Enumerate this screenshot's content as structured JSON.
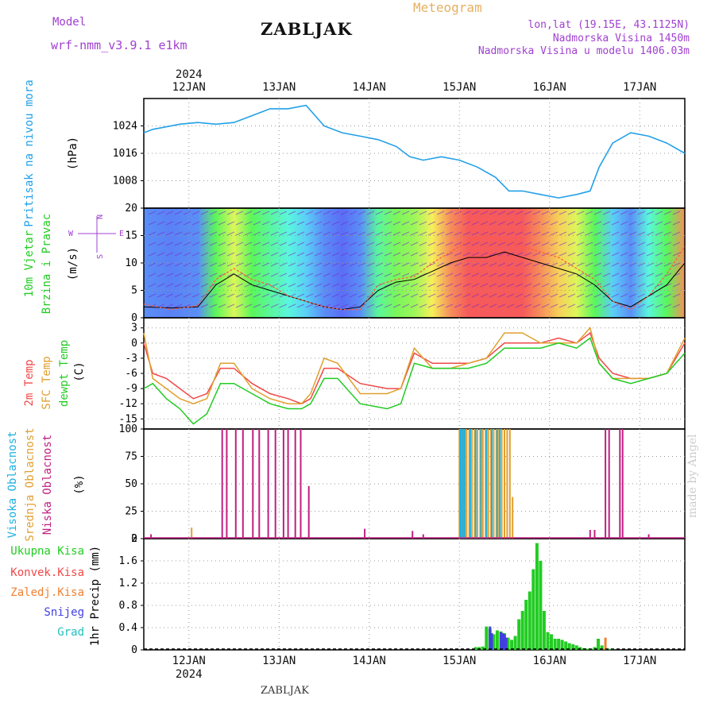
{
  "header": {
    "model_label": "Model",
    "model_name": "wrf-nmm_v3.9.1  e1km",
    "station": "ZABLJAK",
    "meteogram_label": "Meteogram",
    "lonlat": "lon,lat (19.15E, 43.1125N)",
    "elevation": "Nadmorska Visina 1450m",
    "elevation_model": "Nadmorska Visina u modelu 1406.03m"
  },
  "footer": {
    "station": "ZABLJAK",
    "credit": "made by Angel"
  },
  "colors": {
    "pressure": "#22a0e8",
    "temp2m": "#f04848",
    "sfc_temp": "#e0a030",
    "dewpoint": "#22cc22",
    "high_cloud": "#20b0e0",
    "mid_cloud": "#e0a030",
    "low_cloud": "#c02080",
    "total_precip": "#22cc22",
    "convective_precip": "#f04848",
    "freezing_precip": "#f08030",
    "snow": "#4040e0",
    "graupel": "#20c0c0"
  },
  "chart_data": [
    {
      "id": "pressure",
      "type": "line",
      "ylabel": [
        "Pritisak na nivou mora",
        "(hPa)"
      ],
      "yticks": [
        1008,
        1016,
        1024
      ],
      "ylim": [
        1000,
        1032
      ],
      "xlim": [
        11.5,
        17.5
      ],
      "x_top_labels": [
        "12JAN",
        "13JAN",
        "14JAN",
        "15JAN",
        "16JAN",
        "17JAN"
      ],
      "x_top_year": "2024",
      "series": [
        {
          "x": [
            11.5,
            11.6,
            11.7,
            11.9,
            12.1,
            12.3,
            12.5,
            12.7,
            12.9,
            13.1,
            13.3,
            13.5,
            13.7,
            13.9,
            14.1,
            14.3,
            14.45,
            14.6,
            14.8,
            15.0,
            15.2,
            15.4,
            15.55,
            15.7,
            15.9,
            16.1,
            16.3,
            16.45,
            16.55,
            16.7,
            16.9,
            17.1,
            17.3,
            17.5
          ],
          "y": [
            1022,
            1023,
            1023.5,
            1024.5,
            1025,
            1024.5,
            1025,
            1027,
            1029,
            1029,
            1030,
            1024,
            1022,
            1021,
            1020,
            1018,
            1015,
            1014,
            1015,
            1014,
            1012,
            1009,
            1005,
            1005,
            1004,
            1003,
            1004,
            1005,
            1012,
            1019,
            1022,
            1021,
            1019,
            1016
          ]
        }
      ]
    },
    {
      "id": "wind",
      "type": "line",
      "ylabel": [
        "10m Vjetar",
        "Brzina i Pravac",
        "(m/s)"
      ],
      "direction_legend": [
        "N",
        "E",
        "S",
        "W"
      ],
      "yticks": [
        0,
        5,
        10,
        15,
        20
      ],
      "ylim": [
        0,
        20
      ],
      "xlim": [
        11.5,
        17.5
      ],
      "series": [
        {
          "name": "speed",
          "x": [
            11.5,
            11.8,
            12.1,
            12.3,
            12.5,
            12.7,
            12.9,
            13.1,
            13.3,
            13.5,
            13.7,
            13.9,
            14.1,
            14.3,
            14.5,
            14.7,
            14.9,
            15.1,
            15.3,
            15.5,
            15.7,
            15.9,
            16.1,
            16.3,
            16.5,
            16.7,
            16.9,
            17.1,
            17.3,
            17.5
          ],
          "y": [
            2,
            1.8,
            2,
            6,
            8,
            6,
            5,
            4,
            3,
            2,
            1.5,
            2,
            5,
            6.5,
            7,
            8.5,
            10,
            11,
            11,
            12,
            11,
            10,
            9,
            8,
            6,
            3,
            2,
            4,
            6,
            10
          ]
        },
        {
          "name": "gust",
          "x": [
            11.5,
            11.8,
            12.1,
            12.3,
            12.5,
            12.7,
            12.9,
            13.1,
            13.3,
            13.5,
            13.7,
            13.9,
            14.1,
            14.3,
            14.5,
            14.7,
            14.9,
            15.1,
            15.3,
            15.5,
            15.7,
            15.9,
            16.1,
            16.3,
            16.5,
            16.7,
            16.9,
            17.1,
            17.3,
            17.5
          ],
          "y": [
            2.5,
            1.5,
            2.2,
            7,
            9,
            7,
            6,
            4,
            3,
            2,
            1.5,
            1.5,
            6,
            7,
            7.5,
            10,
            12,
            14,
            15,
            14,
            13,
            12,
            11,
            9,
            7,
            3,
            1.5,
            4,
            8,
            13
          ]
        }
      ]
    },
    {
      "id": "temperature",
      "type": "line",
      "ylabel": [
        "2m Temp",
        "SFC Temp",
        "dewpt Temp",
        "(C)"
      ],
      "yticks": [
        3,
        0,
        -3,
        -6,
        -9,
        -12,
        -15
      ],
      "ylim": [
        -17,
        5
      ],
      "xlim": [
        11.5,
        17.5
      ],
      "series": [
        {
          "name": "2m Temp",
          "x": [
            11.5,
            11.6,
            11.75,
            11.9,
            12.05,
            12.2,
            12.35,
            12.5,
            12.7,
            12.9,
            13.1,
            13.25,
            13.35,
            13.5,
            13.65,
            13.9,
            14.2,
            14.35,
            14.5,
            14.7,
            14.9,
            15.1,
            15.3,
            15.5,
            15.7,
            15.9,
            16.1,
            16.3,
            16.45,
            16.55,
            16.7,
            16.9,
            17.1,
            17.3,
            17.5
          ],
          "y": [
            0,
            -6,
            -7,
            -9,
            -11,
            -10,
            -5,
            -5,
            -8,
            -10,
            -11,
            -12,
            -11,
            -5,
            -5,
            -8,
            -9,
            -9,
            -2,
            -4,
            -4,
            -4,
            -3,
            0,
            0,
            0,
            1,
            0,
            2,
            -3,
            -6,
            -7,
            -7,
            -6,
            0
          ]
        },
        {
          "name": "SFC Temp",
          "x": [
            11.5,
            11.6,
            11.75,
            11.9,
            12.05,
            12.2,
            12.35,
            12.5,
            12.7,
            12.9,
            13.1,
            13.25,
            13.35,
            13.5,
            13.65,
            13.9,
            14.2,
            14.35,
            14.5,
            14.7,
            14.9,
            15.1,
            15.3,
            15.5,
            15.7,
            15.9,
            16.1,
            16.3,
            16.45,
            16.55,
            16.7,
            16.9,
            17.1,
            17.3,
            17.5
          ],
          "y": [
            2,
            -7,
            -9,
            -11,
            -12,
            -11,
            -4,
            -4,
            -9,
            -11,
            -12,
            -12,
            -10,
            -3,
            -4,
            -10,
            -10,
            -9,
            -1,
            -5,
            -5,
            -4,
            -3,
            2,
            2,
            0,
            0,
            0,
            3,
            -4,
            -7,
            -7,
            -7,
            -6,
            1
          ]
        },
        {
          "name": "dewpt Temp",
          "x": [
            11.5,
            11.6,
            11.75,
            11.9,
            12.05,
            12.2,
            12.35,
            12.5,
            12.7,
            12.9,
            13.1,
            13.25,
            13.35,
            13.5,
            13.65,
            13.9,
            14.2,
            14.35,
            14.5,
            14.7,
            14.9,
            15.1,
            15.3,
            15.5,
            15.7,
            15.9,
            16.1,
            16.3,
            16.45,
            16.55,
            16.7,
            16.9,
            17.1,
            17.3,
            17.5
          ],
          "y": [
            -9,
            -8,
            -11,
            -13,
            -16,
            -14,
            -8,
            -8,
            -10,
            -12,
            -13,
            -13,
            -12,
            -7,
            -7,
            -12,
            -13,
            -12,
            -4,
            -5,
            -5,
            -5,
            -4,
            -1,
            -1,
            -1,
            0,
            -1,
            1,
            -4,
            -7,
            -8,
            -7,
            -6,
            -2
          ]
        }
      ]
    },
    {
      "id": "cloud",
      "type": "bar",
      "ylabel": [
        "Visoka Oblacnost",
        "Srednja Oblacnost",
        "Niska Oblacnost",
        "(%)"
      ],
      "yticks": [
        0,
        25,
        50,
        75,
        100
      ],
      "ylim": [
        0,
        100
      ],
      "xlim": [
        11.5,
        17.5
      ],
      "series": [
        {
          "name": "Niska Oblacnost",
          "x": [
            11.58,
            12.37,
            12.42,
            12.52,
            12.6,
            12.71,
            12.78,
            12.88,
            12.96,
            13.05,
            13.1,
            13.18,
            13.24,
            13.33,
            13.95,
            14.48,
            14.6,
            16.45,
            16.5,
            16.62,
            16.66,
            16.78,
            16.81,
            17.1
          ],
          "y": [
            4,
            100,
            100,
            100,
            100,
            100,
            100,
            100,
            100,
            100,
            100,
            100,
            100,
            48,
            9,
            7,
            4,
            8,
            8,
            100,
            100,
            100,
            100,
            4
          ]
        },
        {
          "name": "Srednja Oblacnost",
          "x": [
            11.58,
            12.03,
            15.0,
            15.03,
            15.05,
            15.08,
            15.11,
            15.14,
            15.17,
            15.2,
            15.23,
            15.26,
            15.29,
            15.32,
            15.35,
            15.38,
            15.41,
            15.44,
            15.47,
            15.5,
            15.53,
            15.56,
            15.59
          ],
          "y": [
            0,
            10,
            100,
            100,
            100,
            100,
            100,
            100,
            100,
            100,
            100,
            100,
            100,
            100,
            100,
            100,
            100,
            100,
            100,
            100,
            100,
            100,
            38
          ]
        },
        {
          "name": "Visoka Oblacnost",
          "x": [
            15.01,
            15.02,
            15.04,
            15.06,
            15.12,
            15.18,
            15.24,
            15.3,
            15.36,
            15.42,
            15.45
          ],
          "y": [
            100,
            100,
            100,
            100,
            100,
            100,
            100,
            100,
            100,
            100,
            100
          ]
        }
      ]
    },
    {
      "id": "precip",
      "type": "bar",
      "ylabel": [
        "1hr Precip (mm)"
      ],
      "legend": [
        "Ukupna Kisa",
        "Konvek.Kisa",
        "Zaledj.Kisa",
        "Snijeg",
        "Grad"
      ],
      "yticks": [
        0,
        0.4,
        0.8,
        1.2,
        1.6,
        2
      ],
      "ylim": [
        0,
        2
      ],
      "xlim": [
        11.5,
        17.5
      ],
      "x_bottom_labels": [
        "12JAN",
        "13JAN",
        "14JAN",
        "15JAN",
        "16JAN",
        "17JAN"
      ],
      "x_bottom_year": "2024",
      "series": [
        {
          "name": "Ukupna Kisa",
          "x": [
            15.18,
            15.22,
            15.26,
            15.3,
            15.34,
            15.38,
            15.42,
            15.46,
            15.5,
            15.54,
            15.58,
            15.62,
            15.66,
            15.7,
            15.74,
            15.78,
            15.82,
            15.86,
            15.9,
            15.94,
            15.98,
            16.02,
            16.06,
            16.1,
            16.14,
            16.18,
            16.22,
            16.26,
            16.3,
            16.34,
            16.38,
            16.42,
            16.46,
            16.5,
            16.54,
            16.58,
            16.62,
            16.66,
            16.7
          ],
          "y": [
            0.05,
            0.05,
            0.06,
            0.42,
            0.38,
            0.28,
            0.35,
            0.33,
            0.3,
            0.22,
            0.18,
            0.25,
            0.55,
            0.7,
            0.9,
            1.05,
            1.45,
            1.92,
            1.6,
            0.7,
            0.32,
            0.28,
            0.2,
            0.2,
            0.18,
            0.15,
            0.12,
            0.1,
            0.08,
            0.05,
            0.03,
            0.02,
            0.02,
            0.05,
            0.2,
            0.08,
            0.02,
            0.02,
            0.01
          ]
        },
        {
          "name": "Snijeg",
          "x": [
            15.34,
            15.36,
            15.46,
            15.48,
            15.5,
            15.52
          ],
          "y": [
            0.42,
            0.3,
            0.32,
            0.3,
            0.28,
            0.22
          ]
        },
        {
          "name": "Zaledj.Kisa",
          "x": [
            16.62
          ],
          "y": [
            0.22
          ]
        }
      ]
    }
  ]
}
